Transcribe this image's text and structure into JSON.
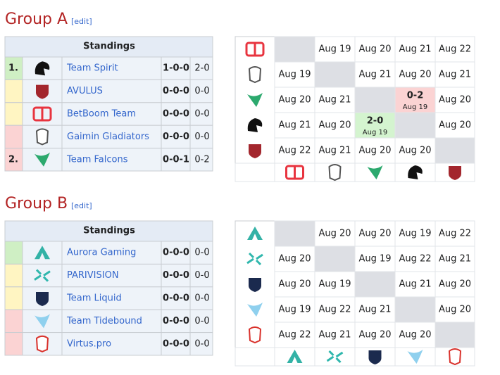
{
  "groups": [
    {
      "title": "Group A",
      "edit": "[edit]",
      "standings_title": "Standings",
      "rows": [
        {
          "rank": "1.",
          "name": "Team Spirit",
          "series": "1-0-0",
          "maps": "2-0",
          "color": "#cfefc4"
        },
        {
          "rank": null,
          "name": "AVULUS",
          "series": "0-0-0",
          "maps": "0-0",
          "color": "#fff5c2"
        },
        {
          "rank": null,
          "name": "BetBoom Team",
          "series": "0-0-0",
          "maps": "0-0",
          "color": "#fff5c2"
        },
        {
          "rank": null,
          "name": "Gaimin Gladiators",
          "series": "0-0-0",
          "maps": "0-0",
          "color": "#fbd3d3"
        },
        {
          "rank": "2.",
          "name": "Team Falcons",
          "series": "0-0-1",
          "maps": "0-2",
          "color": "#fbd3d3"
        }
      ],
      "matrix": [
        [
          null,
          "Aug 19",
          "Aug 20",
          "Aug 21",
          "Aug 22"
        ],
        [
          "Aug 19",
          null,
          "Aug 21",
          "Aug 20",
          "Aug 21"
        ],
        [
          "Aug 20",
          "Aug 21",
          null,
          {
            "score": "0-2",
            "date": "Aug 19",
            "color": "#fbd3d3"
          },
          "Aug 20"
        ],
        [
          "Aug 21",
          "Aug 20",
          {
            "score": "2-0",
            "date": "Aug 19",
            "color": "#d4f4cf"
          },
          null,
          "Aug 20"
        ],
        [
          "Aug 22",
          "Aug 21",
          "Aug 20",
          "Aug 20",
          null
        ]
      ]
    },
    {
      "title": "Group B",
      "edit": "[edit]",
      "standings_title": "Standings",
      "rows": [
        {
          "rank": null,
          "name": "Aurora Gaming",
          "series": "0-0-0",
          "maps": "0-0",
          "color": "#cfefc4"
        },
        {
          "rank": null,
          "name": "PARIVISION",
          "series": "0-0-0",
          "maps": "0-0",
          "color": "#fff5c2"
        },
        {
          "rank": null,
          "name": "Team Liquid",
          "series": "0-0-0",
          "maps": "0-0",
          "color": "#fff5c2"
        },
        {
          "rank": null,
          "name": "Team Tidebound",
          "series": "0-0-0",
          "maps": "0-0",
          "color": "#fbd3d3"
        },
        {
          "rank": null,
          "name": "Virtus.pro",
          "series": "0-0-0",
          "maps": "0-0",
          "color": "#fbd3d3"
        }
      ],
      "matrix": [
        [
          null,
          "Aug 20",
          "Aug 20",
          "Aug 19",
          "Aug 22"
        ],
        [
          "Aug 20",
          null,
          "Aug 19",
          "Aug 22",
          "Aug 21"
        ],
        [
          "Aug 20",
          "Aug 19",
          null,
          "Aug 21",
          "Aug 20"
        ],
        [
          "Aug 19",
          "Aug 22",
          "Aug 21",
          null,
          "Aug 20"
        ],
        [
          "Aug 22",
          "Aug 21",
          "Aug 20",
          "Aug 20",
          null
        ]
      ]
    }
  ]
}
